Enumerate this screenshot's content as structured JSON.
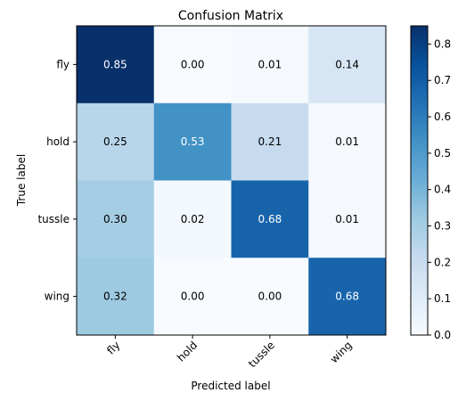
{
  "chart_data": {
    "type": "heatmap",
    "title": "Confusion Matrix",
    "xlabel": "Predicted label",
    "ylabel": "True label",
    "x_categories": [
      "fly",
      "hold",
      "tussle",
      "wing"
    ],
    "y_categories": [
      "fly",
      "hold",
      "tussle",
      "wing"
    ],
    "values": [
      [
        0.85,
        0.0,
        0.01,
        0.14
      ],
      [
        0.25,
        0.53,
        0.21,
        0.01
      ],
      [
        0.3,
        0.02,
        0.68,
        0.01
      ],
      [
        0.32,
        0.0,
        0.0,
        0.68
      ]
    ],
    "cell_labels": [
      [
        "0.85",
        "0.00",
        "0.01",
        "0.14"
      ],
      [
        "0.25",
        "0.53",
        "0.21",
        "0.01"
      ],
      [
        "0.30",
        "0.02",
        "0.68",
        "0.01"
      ],
      [
        "0.32",
        "0.00",
        "0.00",
        "0.68"
      ]
    ],
    "colorbar": {
      "range": [
        0,
        0.85
      ],
      "ticks": [
        "0.0",
        "0.1",
        "0.2",
        "0.3",
        "0.4",
        "0.5",
        "0.6",
        "0.7",
        "0.8"
      ],
      "colormap": "Blues"
    }
  }
}
